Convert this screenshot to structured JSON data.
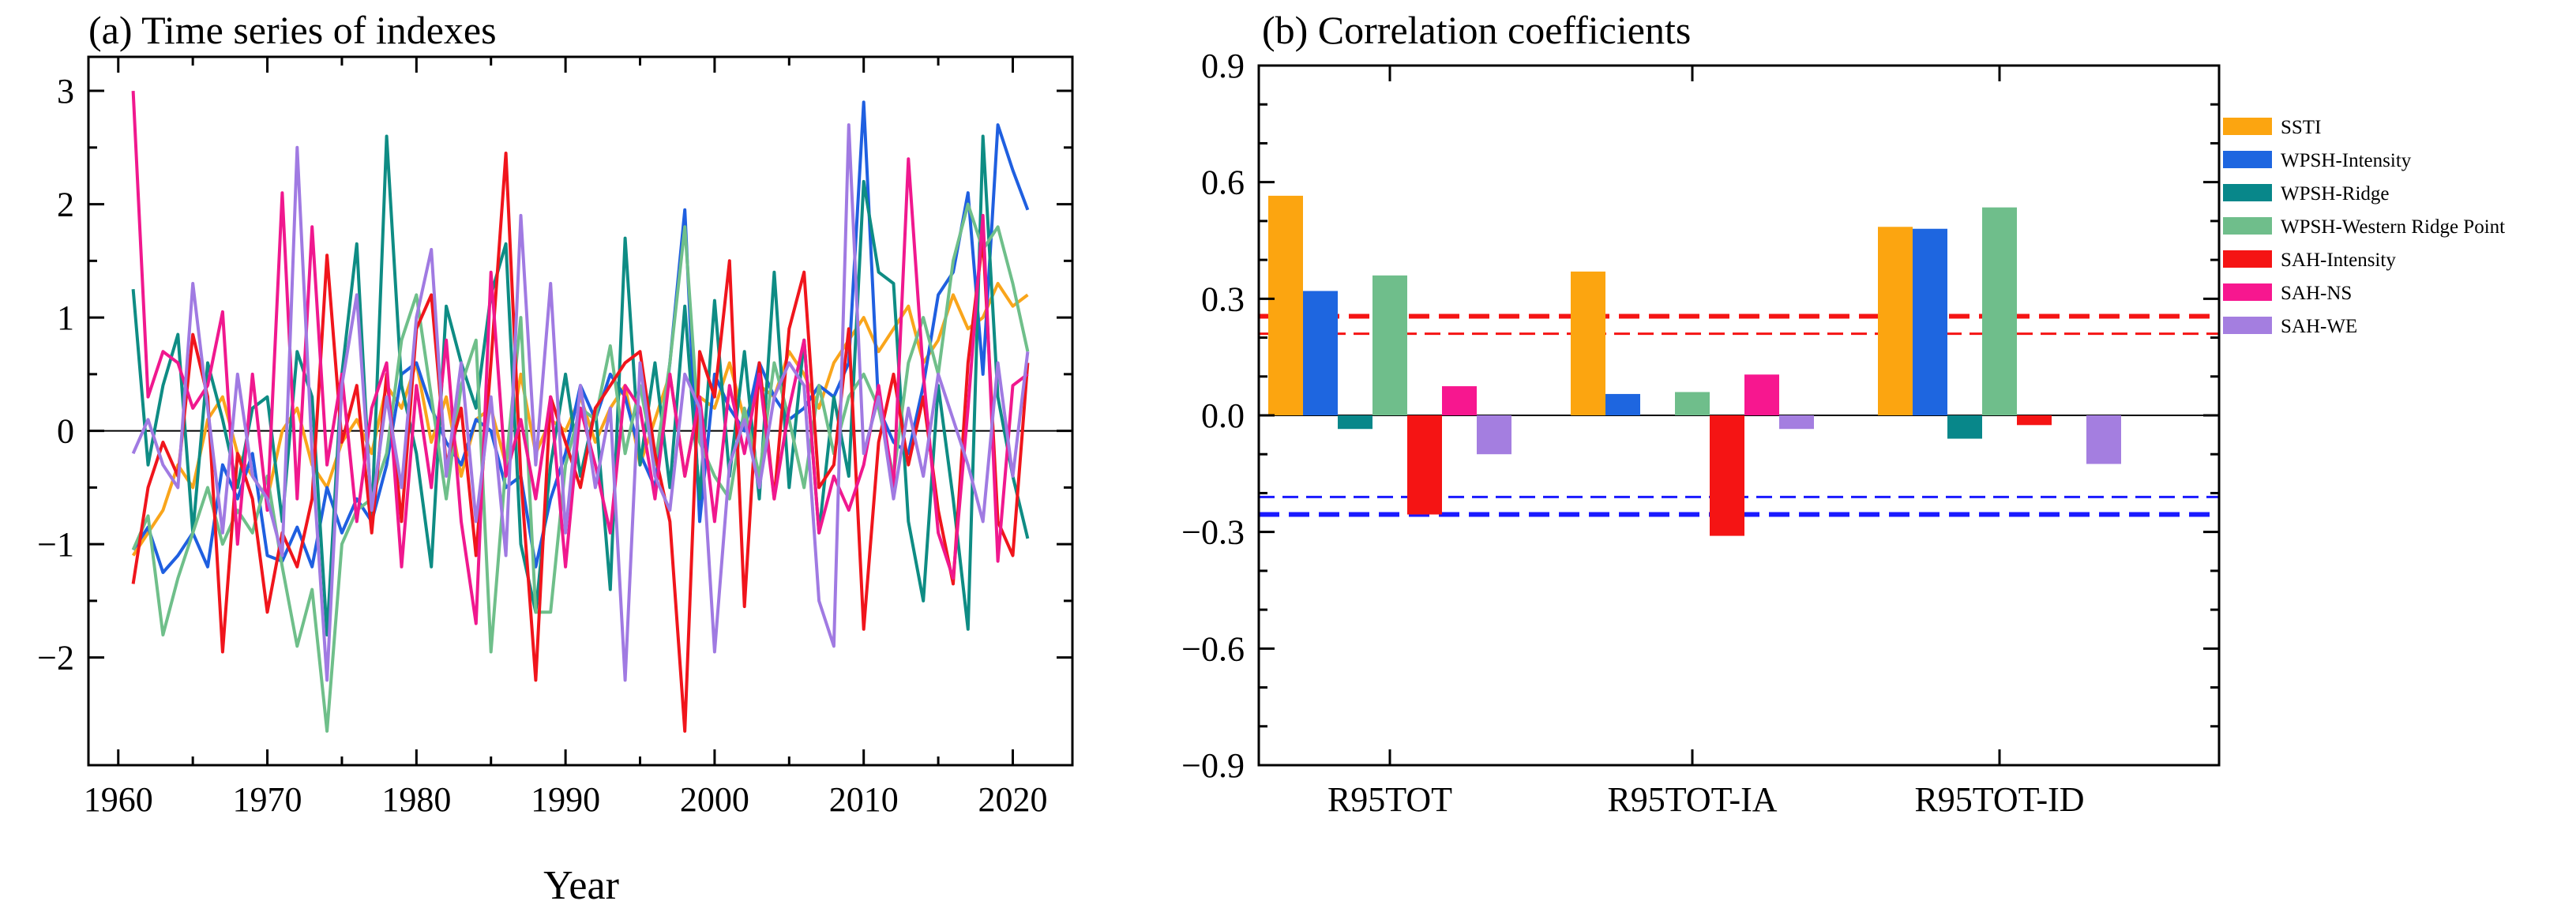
{
  "chart_data": [
    {
      "type": "line",
      "title": "(a) Time series of indexes",
      "xlabel": "Year",
      "ylabel": "",
      "xlim": [
        1958,
        2024
      ],
      "ylim": [
        -2.95,
        3.3
      ],
      "xticks": [
        1960,
        1970,
        1980,
        1990,
        2000,
        2010,
        2020
      ],
      "yticks": [
        -2,
        -1,
        0,
        1,
        2,
        3
      ],
      "ytick_labels": [
        "−2",
        "−1",
        "0",
        "1",
        "2",
        "3"
      ],
      "x": [
        1961,
        1962,
        1963,
        1964,
        1965,
        1966,
        1967,
        1968,
        1969,
        1970,
        1971,
        1972,
        1973,
        1974,
        1975,
        1976,
        1977,
        1978,
        1979,
        1980,
        1981,
        1982,
        1983,
        1984,
        1985,
        1986,
        1987,
        1988,
        1989,
        1990,
        1991,
        1992,
        1993,
        1994,
        1995,
        1996,
        1997,
        1998,
        1999,
        2000,
        2001,
        2002,
        2003,
        2004,
        2005,
        2006,
        2007,
        2008,
        2009,
        2010,
        2011,
        2012,
        2013,
        2014,
        2015,
        2016,
        2017,
        2018,
        2019,
        2020,
        2021
      ],
      "series": [
        {
          "name": "SSTI",
          "color": "#f9a51b",
          "values": [
            -1.1,
            -0.9,
            -0.7,
            -0.3,
            -0.5,
            0.1,
            0.3,
            -0.2,
            -0.4,
            -0.6,
            0.0,
            0.2,
            -0.3,
            -0.5,
            -0.1,
            0.1,
            -0.2,
            0.4,
            0.2,
            0.6,
            -0.1,
            0.3,
            -0.4,
            0.1,
            0.2,
            -0.3,
            0.5,
            -0.2,
            0.1,
            0.0,
            0.3,
            -0.1,
            0.2,
            0.4,
            -0.3,
            0.1,
            0.5,
            -0.4,
            0.3,
            0.2,
            0.6,
            0.1,
            0.4,
            0.3,
            0.7,
            0.5,
            0.2,
            0.6,
            0.8,
            1.0,
            0.7,
            0.9,
            1.1,
            0.6,
            0.8,
            1.2,
            0.9,
            1.0,
            1.3,
            1.1,
            1.2
          ]
        },
        {
          "name": "WPSH-Intensity",
          "color": "#1f5fe0",
          "values": [
            -1.05,
            -0.85,
            -1.25,
            -1.1,
            -0.9,
            -1.2,
            -0.3,
            -0.6,
            -0.2,
            -1.1,
            -1.15,
            -0.85,
            -1.2,
            -0.5,
            -0.9,
            -0.6,
            -0.8,
            -0.3,
            0.5,
            0.6,
            0.2,
            -0.1,
            -0.3,
            0.1,
            0.0,
            -0.5,
            -0.4,
            -1.2,
            -0.6,
            -0.2,
            0.4,
            0.1,
            0.5,
            0.3,
            -0.2,
            -0.5,
            0.6,
            1.95,
            -0.8,
            0.5,
            0.2,
            0.0,
            0.6,
            0.3,
            0.1,
            0.2,
            0.4,
            0.3,
            0.6,
            2.9,
            0.2,
            -0.1,
            -0.2,
            0.4,
            1.2,
            1.4,
            2.1,
            0.5,
            2.7,
            2.3,
            1.95
          ]
        },
        {
          "name": "WPSH-Ridge",
          "color": "#0e8c84",
          "values": [
            1.25,
            -0.3,
            0.4,
            0.85,
            -0.9,
            0.6,
            0.1,
            -0.5,
            0.2,
            0.3,
            -0.8,
            0.7,
            0.3,
            -1.8,
            0.5,
            1.65,
            -0.8,
            2.6,
            0.4,
            -0.2,
            -1.2,
            1.1,
            0.6,
            0.2,
            1.2,
            1.65,
            -1.0,
            -1.6,
            -0.3,
            0.5,
            -0.4,
            0.2,
            -1.4,
            1.7,
            -0.3,
            0.6,
            -0.5,
            1.1,
            -0.6,
            1.15,
            -0.4,
            0.7,
            -0.6,
            1.4,
            -0.5,
            0.8,
            -0.9,
            0.3,
            -0.4,
            2.2,
            1.4,
            1.3,
            -0.8,
            -1.5,
            0.4,
            -0.6,
            -1.75,
            2.6,
            0.3,
            -0.4,
            -0.95
          ]
        },
        {
          "name": "WPSH-Western Ridge Point",
          "color": "#6fbf8a",
          "values": [
            -1.05,
            -0.75,
            -1.8,
            -1.3,
            -0.9,
            -0.5,
            -1.0,
            -0.7,
            -0.9,
            -0.4,
            -1.2,
            -1.9,
            -1.4,
            -2.65,
            -1.0,
            -0.7,
            -0.6,
            -0.2,
            0.8,
            1.2,
            0.3,
            -0.6,
            0.4,
            0.8,
            -1.95,
            -0.3,
            1.0,
            -1.6,
            -1.6,
            -0.3,
            0.2,
            0.1,
            0.75,
            -0.2,
            0.4,
            -0.3,
            0.6,
            1.8,
            -0.1,
            -0.4,
            -0.6,
            0.2,
            -0.4,
            0.6,
            0.1,
            -0.5,
            0.4,
            -0.2,
            0.3,
            0.5,
            0.2,
            -0.4,
            0.6,
            1.0,
            0.5,
            1.5,
            2.0,
            1.6,
            1.8,
            1.3,
            0.7
          ]
        },
        {
          "name": "SAH-Intensity",
          "color": "#f0151c",
          "values": [
            -1.35,
            -0.5,
            -0.1,
            -0.4,
            0.85,
            0.3,
            -1.95,
            -0.2,
            -0.6,
            -1.6,
            -0.9,
            -1.2,
            -0.6,
            1.55,
            -0.1,
            0.4,
            -0.9,
            0.5,
            -0.8,
            0.9,
            1.2,
            -0.3,
            0.2,
            -1.1,
            0.6,
            2.45,
            -0.4,
            -2.2,
            0.3,
            -0.1,
            -0.5,
            0.2,
            0.4,
            0.6,
            0.7,
            -0.2,
            -0.8,
            -2.65,
            0.7,
            0.3,
            1.5,
            -1.55,
            0.6,
            -0.6,
            0.9,
            1.4,
            -0.5,
            -0.3,
            0.9,
            -1.75,
            -0.1,
            0.5,
            -0.3,
            0.3,
            -0.7,
            -1.35,
            0.6,
            1.7,
            -0.8,
            -1.1,
            0.6
          ]
        },
        {
          "name": "SAH-NS",
          "color": "#f0188e",
          "values": [
            3.0,
            0.3,
            0.7,
            0.6,
            0.2,
            0.4,
            1.05,
            -1.0,
            0.5,
            -0.7,
            2.1,
            -0.6,
            1.8,
            -0.3,
            0.5,
            -0.8,
            0.2,
            0.6,
            -1.2,
            0.4,
            -0.5,
            0.8,
            -0.8,
            -1.7,
            1.4,
            -0.4,
            0.1,
            -0.6,
            0.3,
            -1.2,
            0.2,
            -0.3,
            -0.9,
            0.4,
            0.2,
            -0.6,
            0.5,
            -0.4,
            0.3,
            -0.8,
            0.4,
            -0.2,
            0.5,
            -0.6,
            0.2,
            0.8,
            -0.9,
            -0.4,
            -0.7,
            -0.3,
            0.4,
            -0.5,
            2.4,
            0.5,
            -0.9,
            -1.3,
            0.2,
            1.9,
            -1.15,
            0.4,
            0.5
          ]
        },
        {
          "name": "SAH-WE",
          "color": "#a07ae2",
          "values": [
            -0.2,
            0.1,
            -0.3,
            -0.5,
            1.3,
            0.2,
            -0.9,
            0.5,
            -0.4,
            -0.6,
            -1.1,
            2.5,
            -0.2,
            -2.2,
            0.4,
            1.2,
            -0.7,
            0.3,
            -0.5,
            1.0,
            1.6,
            -0.4,
            0.6,
            -0.8,
            0.3,
            -1.1,
            1.9,
            -0.3,
            1.3,
            -0.9,
            0.4,
            -0.5,
            0.2,
            -2.2,
            0.6,
            -0.4,
            -0.7,
            0.5,
            0.2,
            -1.95,
            -0.3,
            0.1,
            -0.5,
            0.3,
            0.6,
            0.4,
            -1.5,
            -1.9,
            2.7,
            -0.2,
            0.3,
            -0.6,
            0.2,
            -0.4,
            0.5,
            0.1,
            -0.3,
            -0.8,
            0.6,
            -0.4,
            0.7
          ]
        }
      ]
    },
    {
      "type": "bar",
      "title": "(b) Correlation coefficients",
      "xlabel": "",
      "ylabel": "",
      "categories": [
        "R95TOT",
        "R95TOT-IA",
        "R95TOT-ID"
      ],
      "ylim": [
        -0.9,
        0.9
      ],
      "yticks": [
        -0.9,
        -0.6,
        -0.3,
        0.0,
        0.3,
        0.6,
        0.9
      ],
      "ytick_labels": [
        "−0.9",
        "−0.6",
        "−0.3",
        "0.0",
        "0.3",
        "0.6",
        "0.9"
      ],
      "series": [
        {
          "name": "SSTI",
          "color": "#fca510",
          "values": [
            0.565,
            0.37,
            0.485
          ]
        },
        {
          "name": "WPSH-Intensity",
          "color": "#1e66e0",
          "values": [
            0.32,
            0.055,
            0.48
          ]
        },
        {
          "name": "WPSH-Ridge",
          "color": "#08878a",
          "values": [
            -0.035,
            0.0,
            -0.06
          ]
        },
        {
          "name": "WPSH-Western Ridge Point",
          "color": "#6fbe8b",
          "values": [
            0.36,
            0.06,
            0.535
          ]
        },
        {
          "name": "SAH-Intensity",
          "color": "#f51414",
          "values": [
            -0.255,
            -0.31,
            -0.025
          ]
        },
        {
          "name": "SAH-NS",
          "color": "#f7178f",
          "values": [
            0.075,
            0.105,
            0.0
          ]
        },
        {
          "name": "SAH-WE",
          "color": "#a47ee0",
          "values": [
            -0.1,
            -0.035,
            -0.125
          ]
        }
      ],
      "reference_lines": [
        {
          "value": 0.255,
          "color": "#f51414",
          "style": "dashed-thick"
        },
        {
          "value": 0.21,
          "color": "#f51414",
          "style": "dashed-thin"
        },
        {
          "value": -0.21,
          "color": "#1a1aff",
          "style": "dashed-thin"
        },
        {
          "value": -0.255,
          "color": "#1a1aff",
          "style": "dashed-thick"
        }
      ],
      "legend_position": "right"
    }
  ]
}
